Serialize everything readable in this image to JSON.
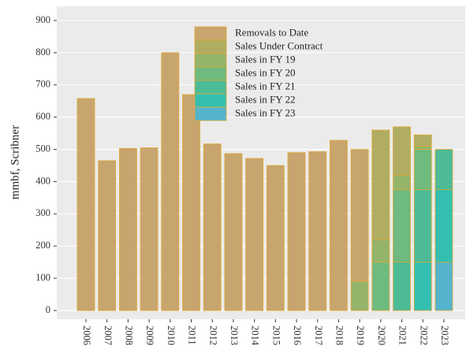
{
  "chart_data": {
    "type": "stacked_bar",
    "y_label": "mmbf, Scribner",
    "categories": [
      "2006",
      "2007",
      "2008",
      "2009",
      "2010",
      "2011",
      "2012",
      "2013",
      "2014",
      "2015",
      "2016",
      "2017",
      "2018",
      "2019",
      "2020",
      "2021",
      "2022",
      "2023"
    ],
    "series": [
      {
        "name": "Removals to Date",
        "color": "#c8a56e",
        "values": [
          658,
          465,
          503,
          505,
          800,
          670,
          517,
          487,
          472,
          450,
          490,
          493,
          528,
          410,
          0,
          0,
          0,
          0
        ]
      },
      {
        "name": "Sales Under Contract",
        "color": "#b0ad63",
        "values": [
          0,
          0,
          0,
          0,
          0,
          0,
          0,
          0,
          0,
          0,
          0,
          0,
          0,
          0,
          340,
          150,
          35,
          0
        ]
      },
      {
        "name": "Sales in FY 19",
        "color": "#94b46a",
        "values": [
          0,
          0,
          0,
          0,
          0,
          0,
          0,
          0,
          0,
          0,
          0,
          0,
          0,
          90,
          70,
          45,
          10,
          0
        ]
      },
      {
        "name": "Sales in FY 20",
        "color": "#6fba7e",
        "values": [
          0,
          0,
          0,
          0,
          0,
          0,
          0,
          0,
          0,
          0,
          0,
          0,
          0,
          0,
          150,
          225,
          125,
          0
        ]
      },
      {
        "name": "Sales in FY 21",
        "color": "#4cbb96",
        "values": [
          0,
          0,
          0,
          0,
          0,
          0,
          0,
          0,
          0,
          0,
          0,
          0,
          0,
          0,
          0,
          150,
          225,
          125
        ]
      },
      {
        "name": "Sales in FY 22",
        "color": "#33bfb0",
        "values": [
          0,
          0,
          0,
          0,
          0,
          0,
          0,
          0,
          0,
          0,
          0,
          0,
          0,
          0,
          0,
          0,
          150,
          225
        ]
      },
      {
        "name": "Sales in FY 23",
        "color": "#55b4cc",
        "values": [
          0,
          0,
          0,
          0,
          0,
          0,
          0,
          0,
          0,
          0,
          0,
          0,
          0,
          0,
          0,
          0,
          0,
          150
        ]
      }
    ],
    "ylim": [
      -27,
      944
    ],
    "yticks": [
      0,
      100,
      200,
      300,
      400,
      500,
      600,
      700,
      800,
      900
    ],
    "grid": true,
    "bar_outline": "#e0a832",
    "legend_position": "top"
  }
}
